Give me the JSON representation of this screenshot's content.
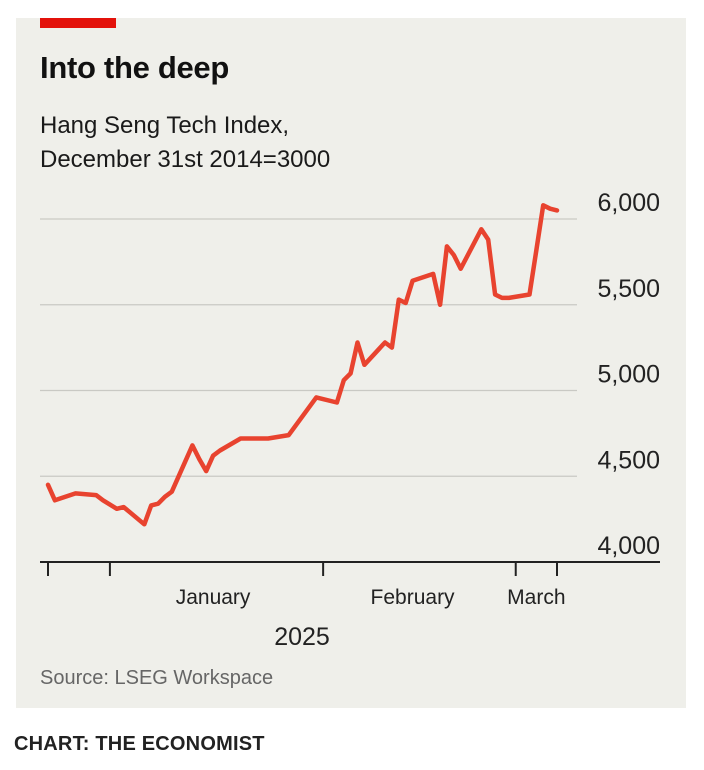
{
  "header": {
    "title": "Into the deep",
    "subtitle_line1": "Hang Seng Tech Index,",
    "subtitle_line2": "December 31st 2014=3000"
  },
  "footer": {
    "source": "Source: LSEG Workspace",
    "credit": "CHART: THE ECONOMIST"
  },
  "colors": {
    "accent": "#e3120b",
    "line": "#e8432f",
    "panel": "#efefea",
    "grid": "#c9c9c4"
  },
  "chart_data": {
    "type": "line",
    "title": "Into the deep",
    "subtitle": "Hang Seng Tech Index, December 31st 2014=3000",
    "xlabel": "2025",
    "ylabel": "",
    "ylim": [
      4000,
      6000
    ],
    "yticks": [
      4000,
      4500,
      5000,
      5500,
      6000
    ],
    "ytick_labels": [
      "4,000",
      "4,500",
      "5,000",
      "5,500",
      "6,000"
    ],
    "xlim": [
      "2024-12-23",
      "2025-03-07"
    ],
    "xticks": [
      "2024-12-23",
      "2025-01-01",
      "2025-02-01",
      "2025-03-01",
      "2025-03-07"
    ],
    "xtick_labels": [
      {
        "label": "January",
        "date": "2025-01-16"
      },
      {
        "label": "February",
        "date": "2025-02-14"
      },
      {
        "label": "March",
        "date": "2025-03-04"
      }
    ],
    "grid": true,
    "series": [
      {
        "x": [
          "2024-12-23",
          "2024-12-24",
          "2024-12-27",
          "2024-12-30",
          "2024-12-31",
          "2025-01-02",
          "2025-01-03",
          "2025-01-06",
          "2025-01-07",
          "2025-01-08",
          "2025-01-09",
          "2025-01-10",
          "2025-01-13",
          "2025-01-14",
          "2025-01-15",
          "2025-01-16",
          "2025-01-17",
          "2025-01-20",
          "2025-01-21",
          "2025-01-22",
          "2025-01-23",
          "2025-01-24",
          "2025-01-27",
          "2025-01-31",
          "2025-02-03",
          "2025-02-04",
          "2025-02-05",
          "2025-02-06",
          "2025-02-07",
          "2025-02-10",
          "2025-02-11",
          "2025-02-12",
          "2025-02-13",
          "2025-02-14",
          "2025-02-17",
          "2025-02-18",
          "2025-02-19",
          "2025-02-20",
          "2025-02-21",
          "2025-02-24",
          "2025-02-25",
          "2025-02-26",
          "2025-02-27",
          "2025-02-28",
          "2025-03-03",
          "2025-03-04",
          "2025-03-05",
          "2025-03-06",
          "2025-03-07"
        ],
        "values": [
          4450,
          4360,
          4400,
          4390,
          4360,
          4310,
          4320,
          4220,
          4330,
          4340,
          4380,
          4410,
          4680,
          4600,
          4530,
          4620,
          4650,
          4720,
          4720,
          4720,
          4720,
          4720,
          4740,
          4960,
          4930,
          5060,
          5100,
          5280,
          5150,
          5280,
          5250,
          5530,
          5510,
          5640,
          5680,
          5500,
          5840,
          5790,
          5710,
          5940,
          5880,
          5560,
          5540,
          5540,
          5560,
          5820,
          6080,
          6060,
          6050
        ]
      }
    ]
  }
}
